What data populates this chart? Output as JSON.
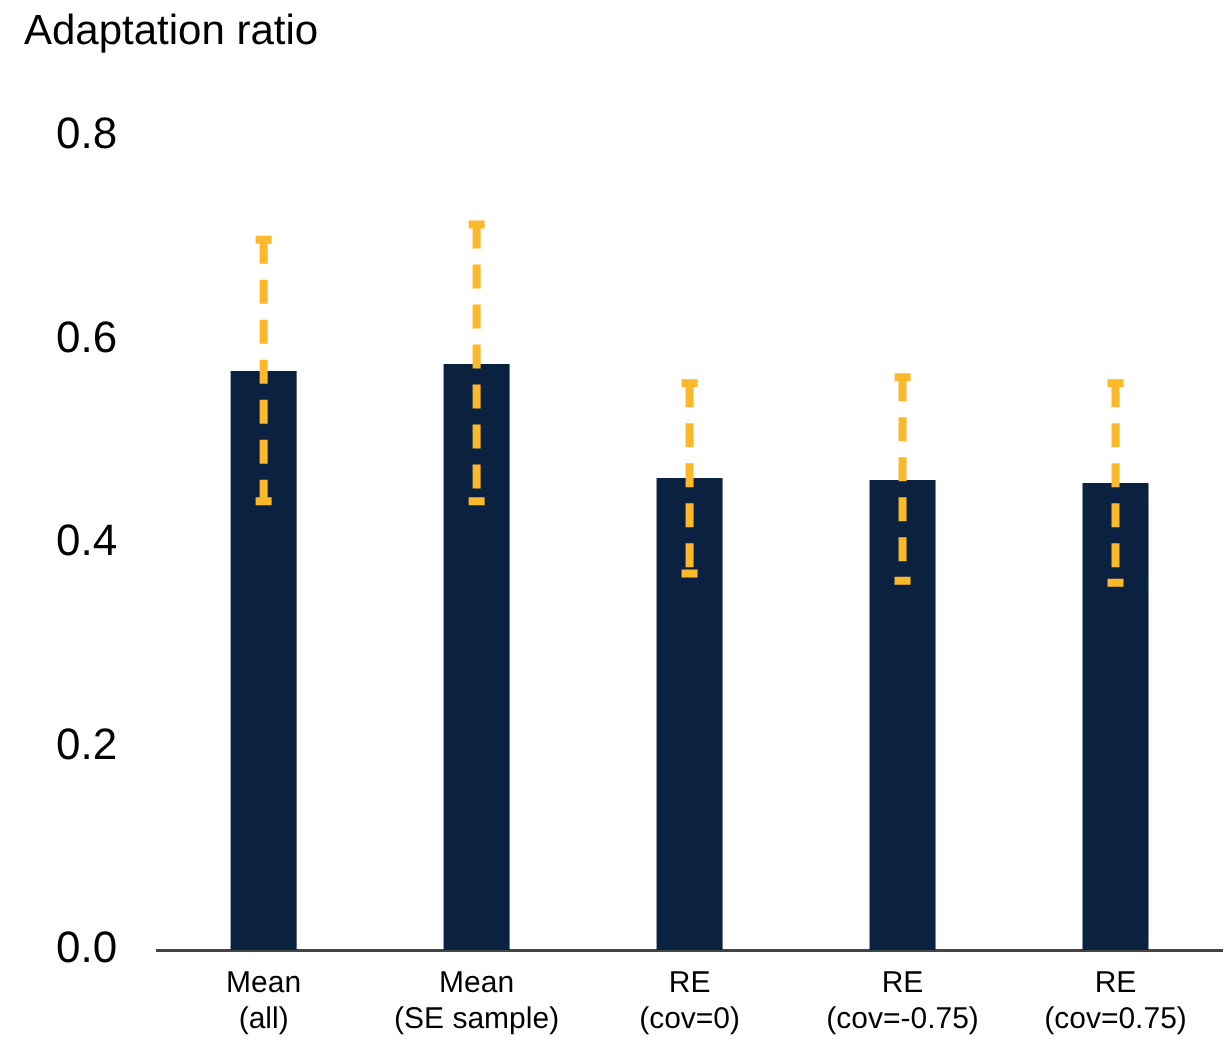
{
  "chart_data": {
    "type": "bar",
    "ylabel": "Adaptation ratio",
    "categories": [
      "Mean\n(all)",
      "Mean\n(SE sample)",
      "RE\n(cov=0)",
      "RE\n(cov=-0.75)",
      "RE\n(cov=0.75)"
    ],
    "values": [
      0.569,
      0.576,
      0.464,
      0.462,
      0.459
    ],
    "errors": [
      [
        0.441,
        0.698
      ],
      [
        0.441,
        0.713
      ],
      [
        0.37,
        0.557
      ],
      [
        0.363,
        0.563
      ],
      [
        0.361,
        0.557
      ]
    ],
    "color": "#0a2240",
    "ylim": [
      0,
      0.8
    ],
    "yticks": [
      {
        "value": 0,
        "label": "0.0"
      },
      0.2,
      0.4,
      0.6,
      0.8
    ],
    "grid": false,
    "legend": false
  }
}
